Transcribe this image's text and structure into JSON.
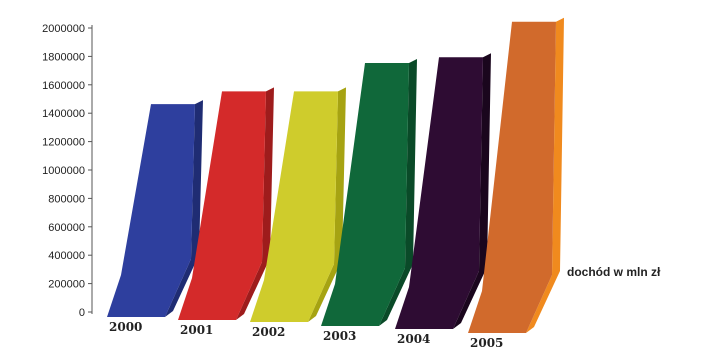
{
  "chart_data": {
    "type": "bar",
    "title": "",
    "xlabel": "",
    "ylabel": "",
    "categories": [
      "2000",
      "2001",
      "2002",
      "2003",
      "2004",
      "2005"
    ],
    "series": [
      {
        "name": "dochód w mln zł",
        "values": [
          1520000,
          1610000,
          1610000,
          1810000,
          1850000,
          2100000
        ]
      }
    ],
    "ylim": [
      0,
      2000000
    ],
    "yticks": [
      "0",
      "200000",
      "400000",
      "600000",
      "800000",
      "1000000",
      "1200000",
      "1400000",
      "1600000",
      "1800000",
      "2000000"
    ],
    "colors": [
      "#2e3f9e",
      "#d42a2a",
      "#cfcc2c",
      "#10683a",
      "#2e0c33",
      "#d16a2c"
    ],
    "side_colors": [
      "#1f2c73",
      "#9e1c1c",
      "#a6a312",
      "#0a4a28",
      "#1a061d",
      "#f08a1e"
    ],
    "grid": false,
    "legend": "right",
    "style": "3d-wedge"
  }
}
